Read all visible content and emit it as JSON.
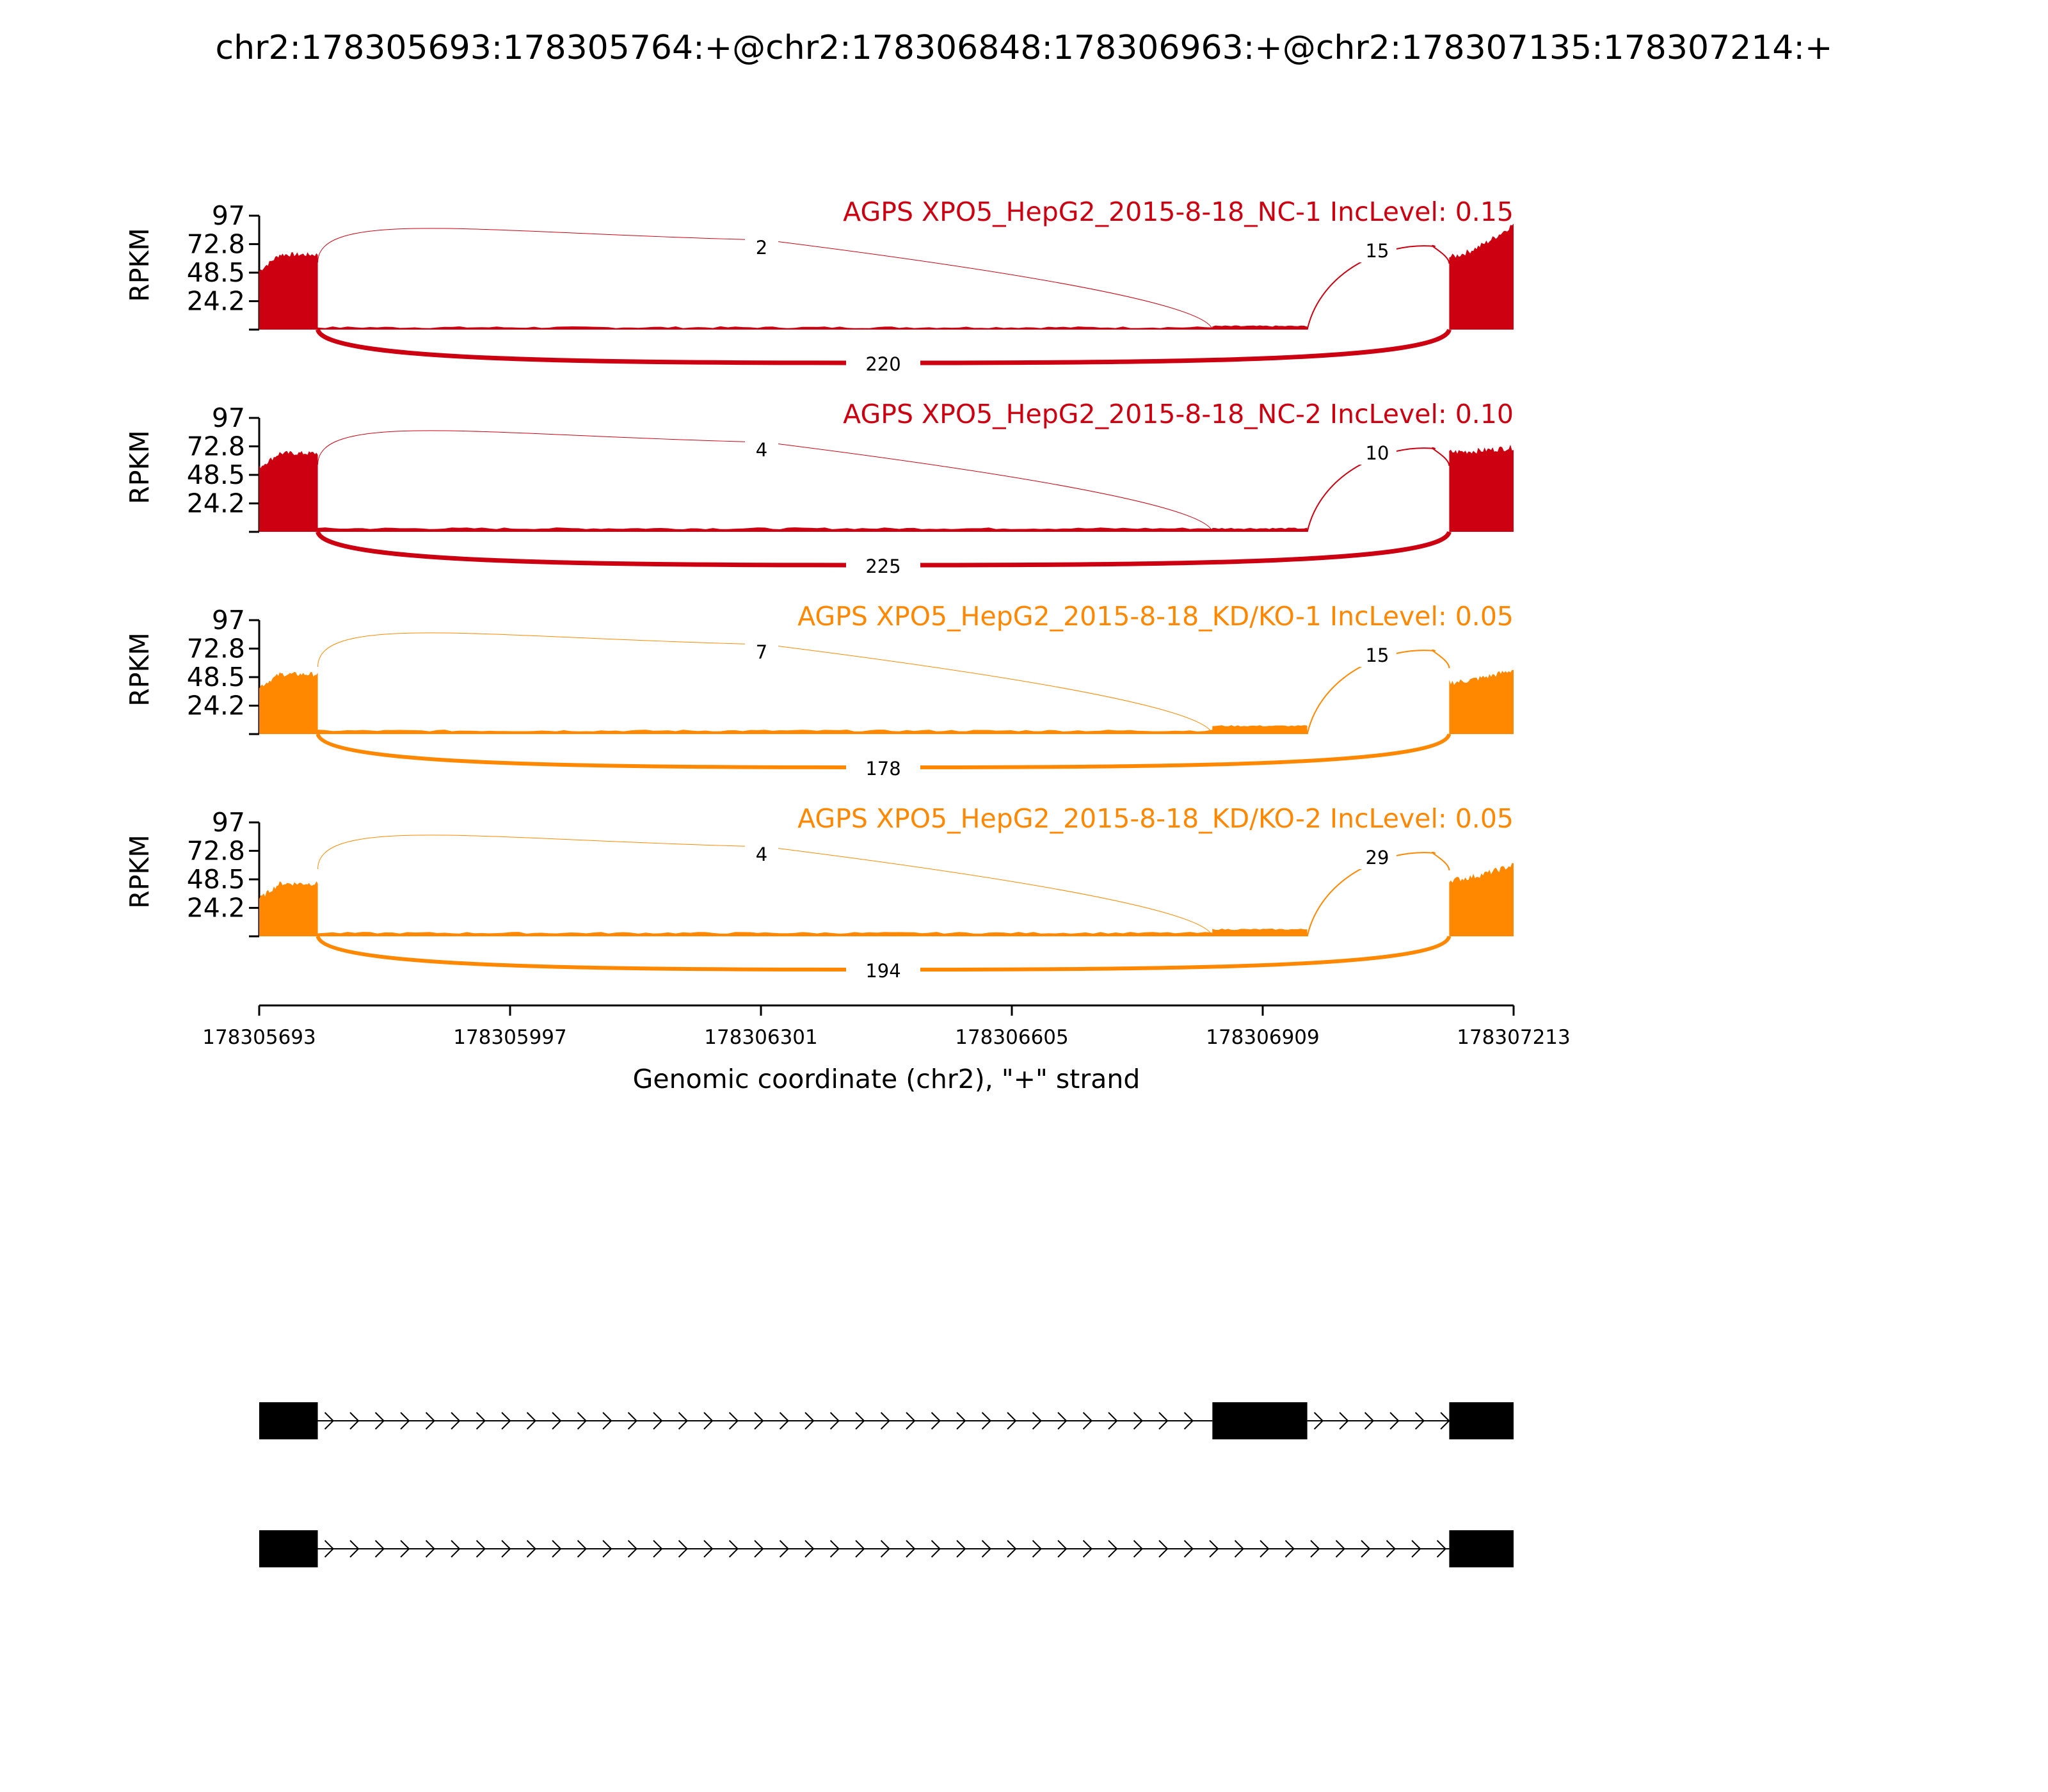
{
  "chart_data": {
    "type": "area",
    "title": "chr2:178305693:178305764:+@chr2:178306848:178306963:+@chr2:178307135:178307214:+",
    "ylabel": "RPKM",
    "xlabel": "Genomic coordinate (chr2), \"+\" strand",
    "xlim": [
      178305693,
      178307213
    ],
    "ylim": [
      0,
      97
    ],
    "x_ticks": [
      "178305693",
      "178305997",
      "178306301",
      "178306605",
      "178306909",
      "178307213"
    ],
    "y_ticks": [
      "97",
      "72.8",
      "48.5",
      "24.2"
    ],
    "exons": [
      {
        "start": 178305693,
        "end": 178305764
      },
      {
        "start": 178306848,
        "end": 178306963
      },
      {
        "start": 178307135,
        "end": 178307214
      }
    ],
    "series": [
      {
        "name": "AGPS XPO5_HepG2_2015-8-18_NC-1 IncLevel: 0.15",
        "color": "#cc0011",
        "junctions": {
          "upstream_inclusion": "2",
          "downstream_inclusion": "15",
          "exclusion": "220"
        },
        "coverage": {
          "exon1": [
            50,
            64
          ],
          "intron1": 2,
          "exon2": 3,
          "intron2": 0,
          "exon3": [
            62,
            90
          ]
        }
      },
      {
        "name": "AGPS XPO5_HepG2_2015-8-18_NC-2 IncLevel: 0.10",
        "color": "#cc0011",
        "junctions": {
          "upstream_inclusion": "4",
          "downstream_inclusion": "10",
          "exclusion": "225"
        },
        "coverage": {
          "exon1": [
            55,
            67
          ],
          "intron1": 3,
          "exon2": 3,
          "intron2": 0,
          "exon3": [
            68,
            72
          ]
        }
      },
      {
        "name": "AGPS XPO5_HepG2_2015-8-18_KD/KO-1 IncLevel: 0.05",
        "color": "#ff8800",
        "junctions": {
          "upstream_inclusion": "7",
          "downstream_inclusion": "15",
          "exclusion": "178"
        },
        "coverage": {
          "exon1": [
            40,
            51
          ],
          "intron1": 3,
          "exon2": 7,
          "intron2": 0,
          "exon3": [
            44,
            55
          ]
        }
      },
      {
        "name": "AGPS XPO5_HepG2_2015-8-18_KD/KO-2 IncLevel: 0.05",
        "color": "#ff8800",
        "junctions": {
          "upstream_inclusion": "4",
          "downstream_inclusion": "29",
          "exclusion": "194"
        },
        "coverage": {
          "exon1": [
            32,
            45
          ],
          "intron1": 3,
          "exon2": 6,
          "intron2": 0,
          "exon3": [
            48,
            61
          ]
        }
      }
    ],
    "isoforms": [
      {
        "exons": [
          [
            178305693,
            178305764
          ],
          [
            178306848,
            178306963
          ],
          [
            178307135,
            178307214
          ]
        ]
      },
      {
        "exons": [
          [
            178305693,
            178305764
          ],
          [
            178307135,
            178307214
          ]
        ]
      }
    ]
  }
}
